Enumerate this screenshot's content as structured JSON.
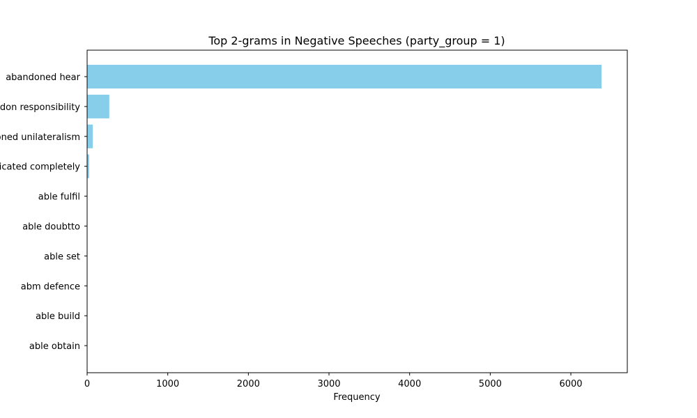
{
  "chart_data": {
    "type": "bar",
    "orientation": "horizontal",
    "title": "Top 2-grams in Negative Speeches (party_group = 1)",
    "xlabel": "Frequency",
    "ylabel": "",
    "categories": [
      "abandoned hear",
      "abandon responsibility",
      "abandoned unilateralism",
      "abdicated completely",
      "able fulfil",
      "able doubtto",
      "able set",
      "abm defence",
      "able build",
      "able obtain"
    ],
    "values": [
      6380,
      275,
      70,
      25,
      3,
      2,
      2,
      2,
      1,
      1
    ],
    "xlim": [
      0,
      6700
    ],
    "xticks": [
      0,
      1000,
      2000,
      3000,
      4000,
      5000,
      6000
    ],
    "grid": false,
    "legend": "none",
    "bar_color": "#87CEEB"
  }
}
